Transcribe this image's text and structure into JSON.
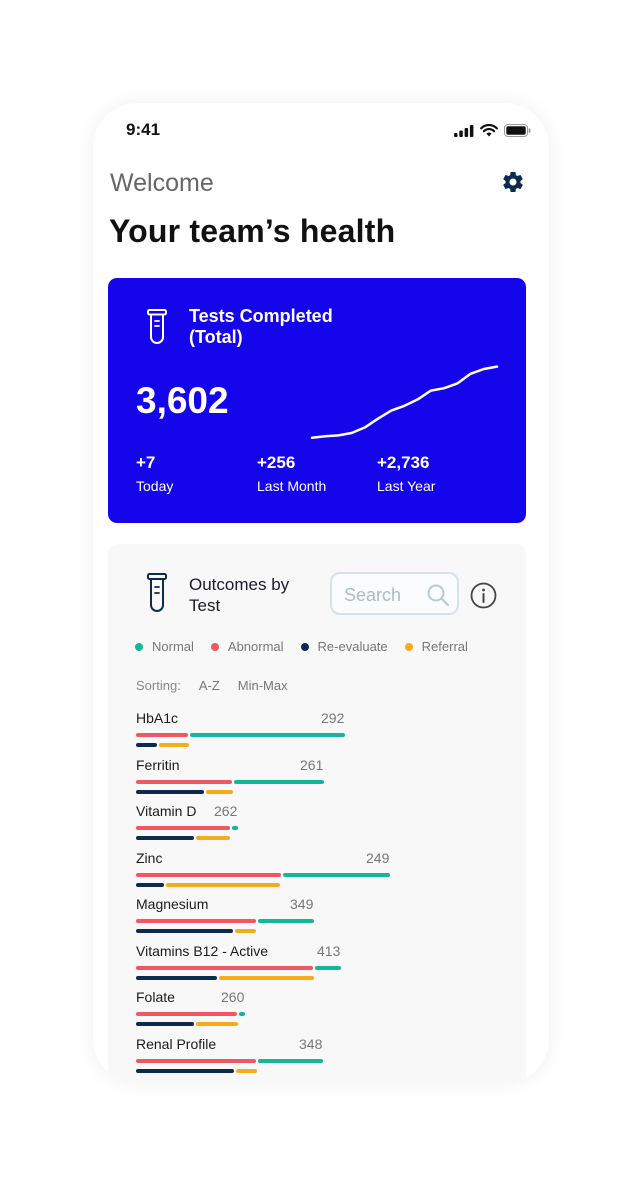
{
  "status_bar": {
    "time": "9:41"
  },
  "header": {
    "welcome": "Welcome",
    "title": "Your team’s health"
  },
  "summary": {
    "title": "Tests Completed (Total)",
    "total": "3,602",
    "trend": [
      0.04,
      0.06,
      0.07,
      0.1,
      0.17,
      0.28,
      0.38,
      0.44,
      0.52,
      0.63,
      0.66,
      0.72,
      0.84,
      0.9,
      0.93
    ],
    "stats": [
      {
        "value": "+7",
        "label": "Today"
      },
      {
        "value": "+256",
        "label": "Last Month"
      },
      {
        "value": "+2,736",
        "label": "Last Year"
      }
    ]
  },
  "outcomes": {
    "title": "Outcomes by Test",
    "search_placeholder": "Search",
    "legend": [
      {
        "label": "Normal",
        "color": "#12b89a"
      },
      {
        "label": "Abnormal",
        "color": "#f0575f"
      },
      {
        "label": "Re-evaluate",
        "color": "#0d2a50"
      },
      {
        "label": "Referral",
        "color": "#f5ac1a"
      }
    ],
    "sorting": {
      "label": "Sorting:",
      "options": [
        "A-Z",
        "Min-Max"
      ]
    },
    "tests": [
      {
        "name": "HbA1c",
        "count": "292",
        "abnormal": 52,
        "normal": 155,
        "reevaluate": 21,
        "referral": 30
      },
      {
        "name": "Ferritin",
        "count": "261",
        "abnormal": 96,
        "normal": 90,
        "reevaluate": 68,
        "referral": 27
      },
      {
        "name": "Vitamin D",
        "count": "262",
        "abnormal": 94,
        "normal": 6,
        "reevaluate": 58,
        "referral": 34
      },
      {
        "name": "Zinc",
        "count": "249",
        "abnormal": 145,
        "normal": 107,
        "reevaluate": 28,
        "referral": 114
      },
      {
        "name": "Magnesium",
        "count": "349",
        "abnormal": 120,
        "normal": 56,
        "reevaluate": 97,
        "referral": 21
      },
      {
        "name": "Vitamins B12 - Active",
        "count": "413",
        "abnormal": 177,
        "normal": 26,
        "reevaluate": 81,
        "referral": 95
      },
      {
        "name": "Folate",
        "count": "260",
        "abnormal": 101,
        "normal": 6,
        "reevaluate": 58,
        "referral": 42
      },
      {
        "name": "Renal Profile",
        "count": "348",
        "abnormal": 120,
        "normal": 65,
        "reevaluate": 98,
        "referral": 21
      }
    ]
  }
}
